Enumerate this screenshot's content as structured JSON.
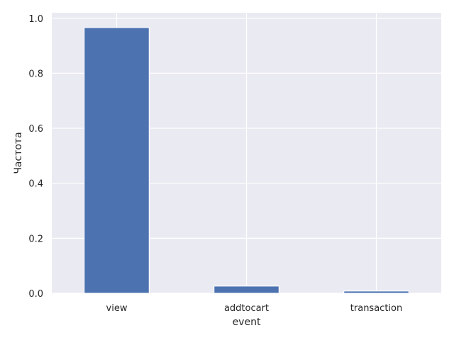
{
  "chart_data": {
    "type": "bar",
    "categories": [
      "view",
      "addtocart",
      "transaction"
    ],
    "values": [
      0.966,
      0.026,
      0.008
    ],
    "title": "",
    "xlabel": "event",
    "ylabel": "Частота",
    "ylim": [
      0,
      1.02
    ],
    "yticks": [
      "0.0",
      "0.2",
      "0.4",
      "0.6",
      "0.8",
      "1.0"
    ],
    "grid": true,
    "colors": {
      "bar": "#4c72b0",
      "plot_background": "#eaeaf2",
      "grid": "#ffffff"
    }
  }
}
